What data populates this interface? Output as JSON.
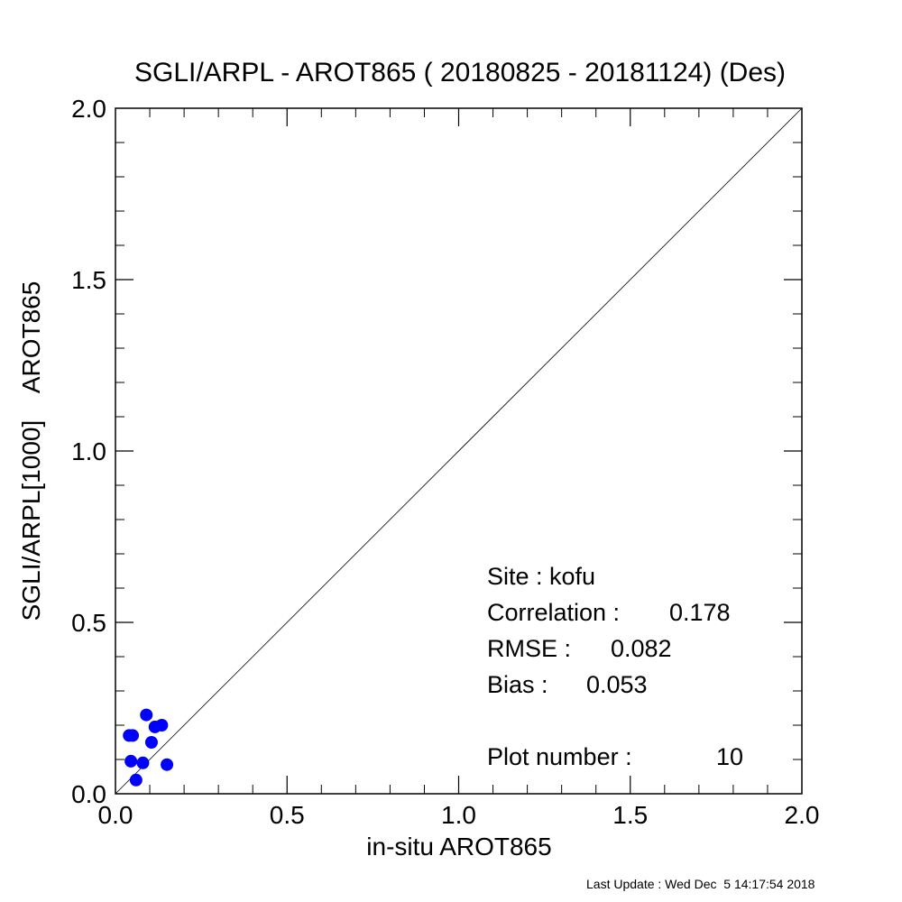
{
  "chart_data": {
    "type": "scatter",
    "title": "SGLI/ARPL - AROT865 ( 20180825 - 20181124) (Des)",
    "xlabel": "in-situ AROT865",
    "ylabel": "SGLI/ARPL[1000]    AROT865",
    "xlim": [
      0.0,
      2.0
    ],
    "ylim": [
      0.0,
      2.0
    ],
    "x_ticks": [
      "0.0",
      "0.5",
      "1.0",
      "1.5",
      "2.0"
    ],
    "y_ticks": [
      "0.0",
      "0.5",
      "1.0",
      "1.5",
      "2.0"
    ],
    "grid": false,
    "reference_line": "1:1",
    "point_color": "#0000ff",
    "points": [
      {
        "x": 0.04,
        "y": 0.17
      },
      {
        "x": 0.05,
        "y": 0.17
      },
      {
        "x": 0.045,
        "y": 0.095
      },
      {
        "x": 0.06,
        "y": 0.04
      },
      {
        "x": 0.08,
        "y": 0.09
      },
      {
        "x": 0.09,
        "y": 0.23
      },
      {
        "x": 0.105,
        "y": 0.15
      },
      {
        "x": 0.115,
        "y": 0.195
      },
      {
        "x": 0.135,
        "y": 0.2
      },
      {
        "x": 0.15,
        "y": 0.085
      }
    ],
    "stats": {
      "site": "Site : kofu",
      "correlation_label": "Correlation :",
      "correlation_value": "0.178",
      "rmse_label": "RMSE :",
      "rmse_value": "0.082",
      "bias_label": "Bias :",
      "bias_value": "0.053",
      "plot_number_label": "Plot number :",
      "plot_number_value": "10"
    }
  },
  "footer": "Last Update : Wed Dec  5 14:17:54 2018"
}
